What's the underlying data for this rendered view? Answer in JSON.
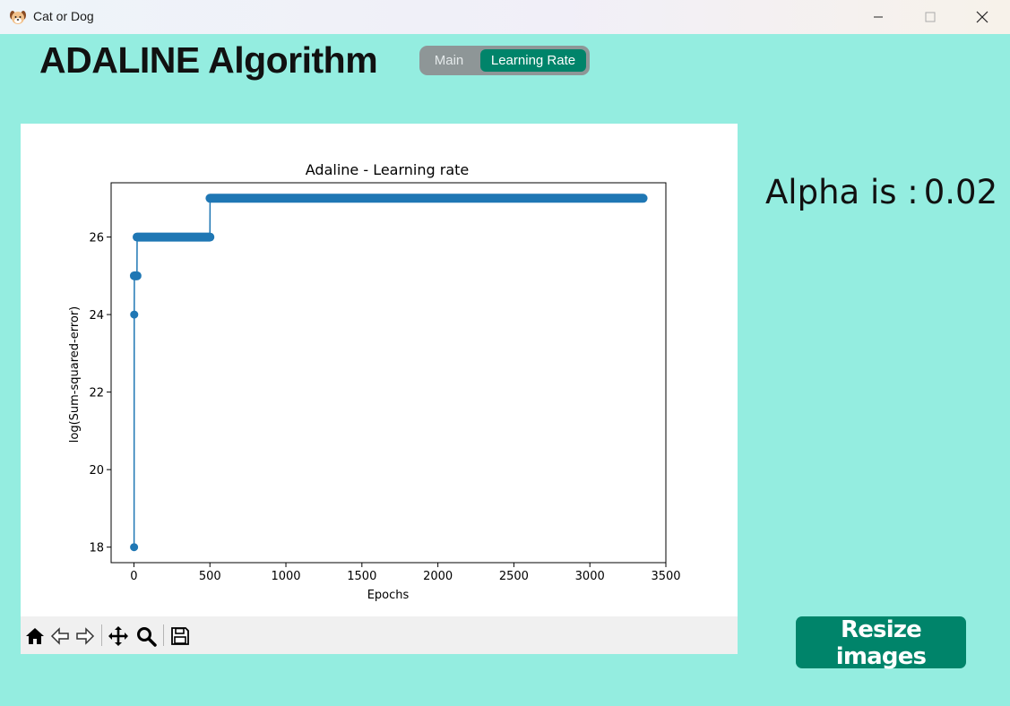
{
  "window": {
    "title": "Cat or Dog",
    "app_icon": "dog-face-icon"
  },
  "header": {
    "title": "ADALINE Algorithm"
  },
  "tabs": [
    {
      "label": "Main",
      "selected": false
    },
    {
      "label": "Learning Rate",
      "selected": true
    }
  ],
  "alpha": {
    "label": "Alpha is :",
    "value": "0.02"
  },
  "actions": {
    "resize_label": "Resize images"
  },
  "toolbar_icons": [
    "home-icon",
    "back-arrow-icon",
    "forward-arrow-icon",
    "pan-icon",
    "zoom-icon",
    "save-icon"
  ],
  "colors": {
    "background": "#94ede0",
    "accent": "#00846a",
    "series": "#1f77b4"
  },
  "chart_data": {
    "type": "line",
    "title": "Adaline - Learning rate",
    "xlabel": "Epochs",
    "ylabel": "log(Sum-squared-error)",
    "xlim": [
      -150,
      3500
    ],
    "ylim": [
      17.6,
      27.4
    ],
    "xticks": [
      0,
      500,
      1000,
      1500,
      2000,
      2500,
      3000,
      3500
    ],
    "yticks": [
      18,
      20,
      22,
      24,
      26
    ],
    "grid": false,
    "markers": true,
    "series": [
      {
        "segments": [
          {
            "x_start": 1,
            "x_end": 1,
            "y": 18
          },
          {
            "x_start": 2,
            "x_end": 2,
            "y": 24
          },
          {
            "x_start": 3,
            "x_end": 20,
            "y": 25
          },
          {
            "x_start": 21,
            "x_end": 500,
            "y": 26
          },
          {
            "x_start": 501,
            "x_end": 3350,
            "y": 27
          }
        ]
      }
    ]
  }
}
